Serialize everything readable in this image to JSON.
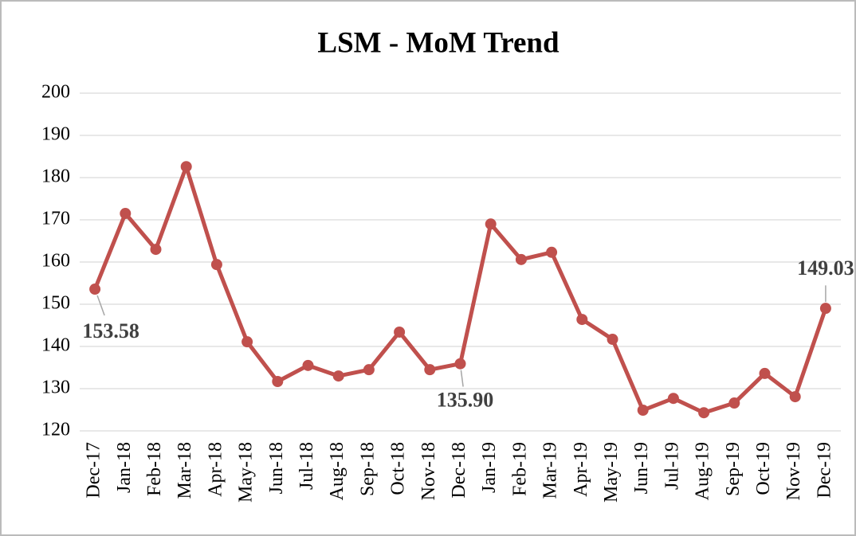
{
  "chart_data": {
    "type": "line",
    "title": "LSM - MoM Trend",
    "categories": [
      "Dec-17",
      "Jan-18",
      "Feb-18",
      "Mar-18",
      "Apr-18",
      "May-18",
      "Jun-18",
      "Jul-18",
      "Aug-18",
      "Sep-18",
      "Oct-18",
      "Nov-18",
      "Dec-18",
      "Jan-19",
      "Feb-19",
      "Mar-19",
      "Apr-19",
      "May-19",
      "Jun-19",
      "Jul-19",
      "Aug-19",
      "Sep-19",
      "Oct-19",
      "Nov-19",
      "Dec-19"
    ],
    "values": [
      153.58,
      171.5,
      163,
      182.6,
      159.4,
      141.1,
      131.7,
      135.5,
      133,
      134.5,
      143.4,
      134.5,
      135.9,
      169,
      160.6,
      162.3,
      146.4,
      141.7,
      124.9,
      127.7,
      124.3,
      126.6,
      133.6,
      128.1,
      149.03
    ],
    "value_labels": [
      "153.58",
      null,
      null,
      null,
      null,
      null,
      null,
      null,
      null,
      null,
      null,
      null,
      "135.90",
      null,
      null,
      null,
      null,
      null,
      null,
      null,
      null,
      null,
      null,
      null,
      "149.03"
    ],
    "color": "#c0504d",
    "ylim": [
      120,
      200
    ],
    "yticks": [
      120,
      130,
      140,
      150,
      160,
      170,
      180,
      190,
      200
    ],
    "grid": true
  }
}
